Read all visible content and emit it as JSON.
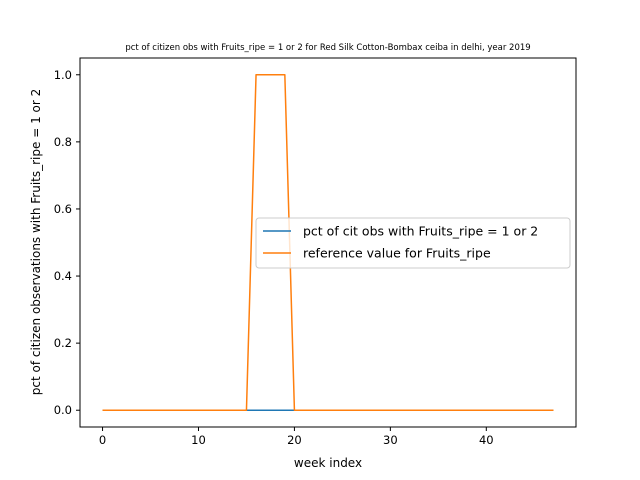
{
  "chart_data": {
    "type": "line",
    "title": "pct of citizen obs with Fruits_ripe = 1 or 2 for Red Silk Cotton-Bombax ceiba in delhi, year 2019",
    "xlabel": "week index",
    "ylabel": "pct of citizen observations with Fruits_ripe = 1 or 2",
    "xlim": [
      -2.35,
      49.35
    ],
    "ylim": [
      -0.05,
      1.05
    ],
    "xticks": [
      0,
      10,
      20,
      30,
      40
    ],
    "yticks": [
      0.0,
      0.2,
      0.4,
      0.6,
      0.8,
      1.0
    ],
    "xtick_labels": [
      "0",
      "10",
      "20",
      "30",
      "40"
    ],
    "ytick_labels": [
      "0.0",
      "0.2",
      "0.4",
      "0.6",
      "0.8",
      "1.0"
    ],
    "grid": false,
    "legend_position": "center-right",
    "series": [
      {
        "name": "pct of cit obs with Fruits_ripe = 1 or 2",
        "color": "#1f77b4",
        "x": [
          0,
          47
        ],
        "y": [
          0,
          0
        ]
      },
      {
        "name": "reference value for Fruits_ripe",
        "color": "#ff7f0e",
        "x": [
          0,
          15,
          16,
          17,
          18,
          19,
          20,
          47
        ],
        "y": [
          0,
          0,
          1,
          1,
          1,
          1,
          0,
          0
        ]
      }
    ]
  }
}
